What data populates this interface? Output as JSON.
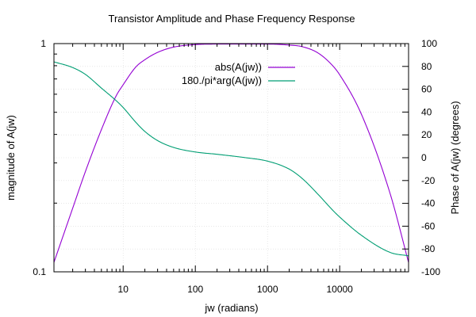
{
  "chart_data": {
    "type": "line",
    "title": "Transistor Amplitude and Phase Frequency Response",
    "xlabel": "jw (radians)",
    "ylabel": "magnitude of A(jw)",
    "y2label": "Phase of A(jw) (degrees)",
    "x_scale": "log",
    "y_scale": "log",
    "xlim": [
      1.1,
      90000
    ],
    "ylim": [
      0.1,
      1
    ],
    "y2lim": [
      -100,
      100
    ],
    "x_ticks": [
      {
        "value": 10,
        "label": "10"
      },
      {
        "value": 100,
        "label": "100"
      },
      {
        "value": 1000,
        "label": "1000"
      },
      {
        "value": 10000,
        "label": "10000"
      }
    ],
    "y_ticks": [
      {
        "value": 0.1,
        "label": "0.1"
      },
      {
        "value": 1,
        "label": "1"
      }
    ],
    "y2_ticks": [
      {
        "value": 100,
        "label": "100"
      },
      {
        "value": 80,
        "label": "80"
      },
      {
        "value": 60,
        "label": "60"
      },
      {
        "value": 40,
        "label": "40"
      },
      {
        "value": 20,
        "label": "20"
      },
      {
        "value": 0,
        "label": "0"
      },
      {
        "value": -20,
        "label": "-20"
      },
      {
        "value": -40,
        "label": "-40"
      },
      {
        "value": -60,
        "label": "-60"
      },
      {
        "value": -80,
        "label": "-80"
      },
      {
        "value": -100,
        "label": "-100"
      }
    ],
    "grid": true,
    "legend_position": "top-right",
    "series": [
      {
        "name": "abs(A(jw))",
        "axis": "y",
        "color": "#9400d3",
        "x": [
          1.1,
          2,
          3,
          5,
          8,
          10,
          15,
          20,
          30,
          50,
          100,
          200,
          500,
          1000,
          2000,
          3000,
          5000,
          8000,
          10000,
          20000,
          50000,
          90000
        ],
        "y": [
          0.11,
          0.19,
          0.275,
          0.42,
          0.59,
          0.66,
          0.79,
          0.85,
          0.915,
          0.965,
          0.99,
          0.995,
          0.995,
          0.995,
          0.985,
          0.97,
          0.91,
          0.8,
          0.73,
          0.49,
          0.22,
          0.11
        ]
      },
      {
        "name": "180./pi*arg(A(jw))",
        "axis": "y2",
        "color": "#009e73",
        "x": [
          1.1,
          2,
          3,
          5,
          8,
          10,
          15,
          20,
          30,
          50,
          100,
          200,
          500,
          1000,
          2000,
          3000,
          5000,
          8000,
          10000,
          20000,
          50000,
          90000
        ],
        "y": [
          84,
          79,
          73,
          61,
          50,
          44,
          31,
          23,
          15,
          9,
          5,
          3,
          0,
          -3,
          -10,
          -18,
          -32,
          -46,
          -52,
          -68,
          -83,
          -86
        ]
      }
    ]
  }
}
